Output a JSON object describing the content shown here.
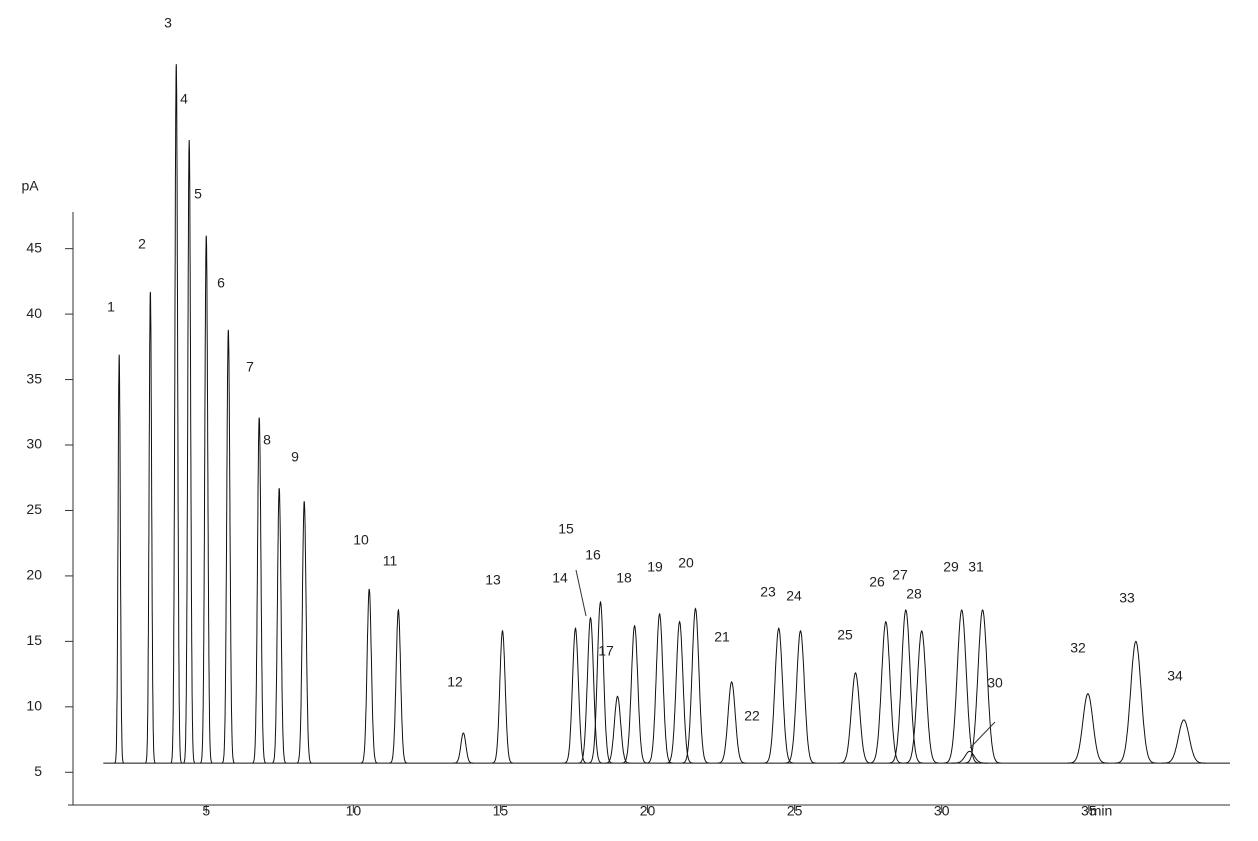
{
  "chart_data": {
    "type": "chromatogram",
    "y_label": "pA",
    "x_label": "min",
    "xlim": [
      0.3,
      39.8
    ],
    "xticks": [
      5,
      10,
      15,
      20,
      25,
      30,
      35
    ],
    "ylim": [
      2.5,
      47.8
    ],
    "yticks": [
      5,
      10,
      15,
      20,
      25,
      30,
      35,
      40,
      45
    ],
    "baseline": 5.7,
    "color": "#111111",
    "labels": [
      "1",
      "2",
      "3",
      "4",
      "5",
      "6",
      "7",
      "8",
      "9",
      "10",
      "11",
      "12",
      "13",
      "14",
      "15",
      "16",
      "17",
      "18",
      "19",
      "20",
      "21",
      "22",
      "23",
      "24",
      "25",
      "26",
      "27",
      "28",
      "29",
      "30",
      "31",
      "32",
      "33",
      "34"
    ],
    "x": [
      2.04,
      3.1,
      3.98,
      4.42,
      5.0,
      5.75,
      6.8,
      7.48,
      8.33,
      10.54,
      11.53,
      13.74,
      15.07,
      17.55,
      18.06,
      18.4,
      18.98,
      19.56,
      20.41,
      21.09,
      21.63,
      22.86,
      24.46,
      25.2,
      27.07,
      28.1,
      28.78,
      29.32,
      30.68,
      30.95,
      31.39,
      34.97,
      36.6,
      38.23
    ],
    "values": [
      36.9,
      41.7,
      59.1,
      53.3,
      46.0,
      38.8,
      32.1,
      26.7,
      25.7,
      19.0,
      17.4,
      8.0,
      15.8,
      16.0,
      16.8,
      18.0,
      10.8,
      16.2,
      17.1,
      16.5,
      17.5,
      11.9,
      16.0,
      15.8,
      12.6,
      16.5,
      17.4,
      15.8,
      17.4,
      6.6,
      17.4,
      11.0,
      15.0,
      9.0
    ]
  }
}
